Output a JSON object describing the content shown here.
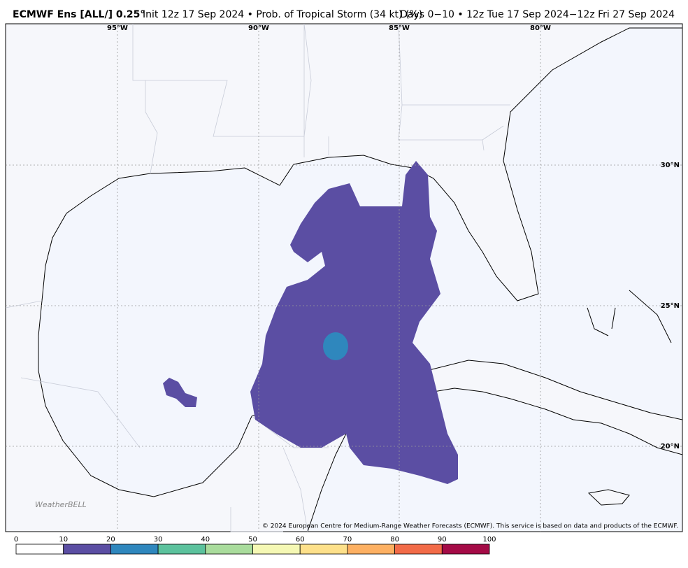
{
  "header": {
    "title_bold": "ECMWF Ens [ALL/] 0.25°",
    "title_rest": "Init 12z 17 Sep 2024 • Prob. of Tropical Storm (34 kt) (%)",
    "valid": "Days 0−10 • 12z Tue 17 Sep 2024−12z Fri 27 Sep 2024"
  },
  "map": {
    "lon_labels": [
      "95°W",
      "90°W",
      "85°W",
      "80°W"
    ],
    "lat_labels": [
      "30°N",
      "25°N",
      "20°N"
    ],
    "watermark": "WeatherBELL",
    "copyright": "© 2024 European Centre for Medium-Range Weather Forecasts (ECMWF). This service is based on data and products of the ECMWF."
  },
  "colorbar": {
    "ticks": [
      0,
      10,
      20,
      30,
      40,
      50,
      60,
      70,
      80,
      90,
      100
    ],
    "colors": [
      "#ffffff",
      "#5b4ea3",
      "#2f87bd",
      "#5cc29d",
      "#a9dc9c",
      "#f5f8b4",
      "#fde08a",
      "#fdb062",
      "#f26b48",
      "#a40b46"
    ]
  }
}
